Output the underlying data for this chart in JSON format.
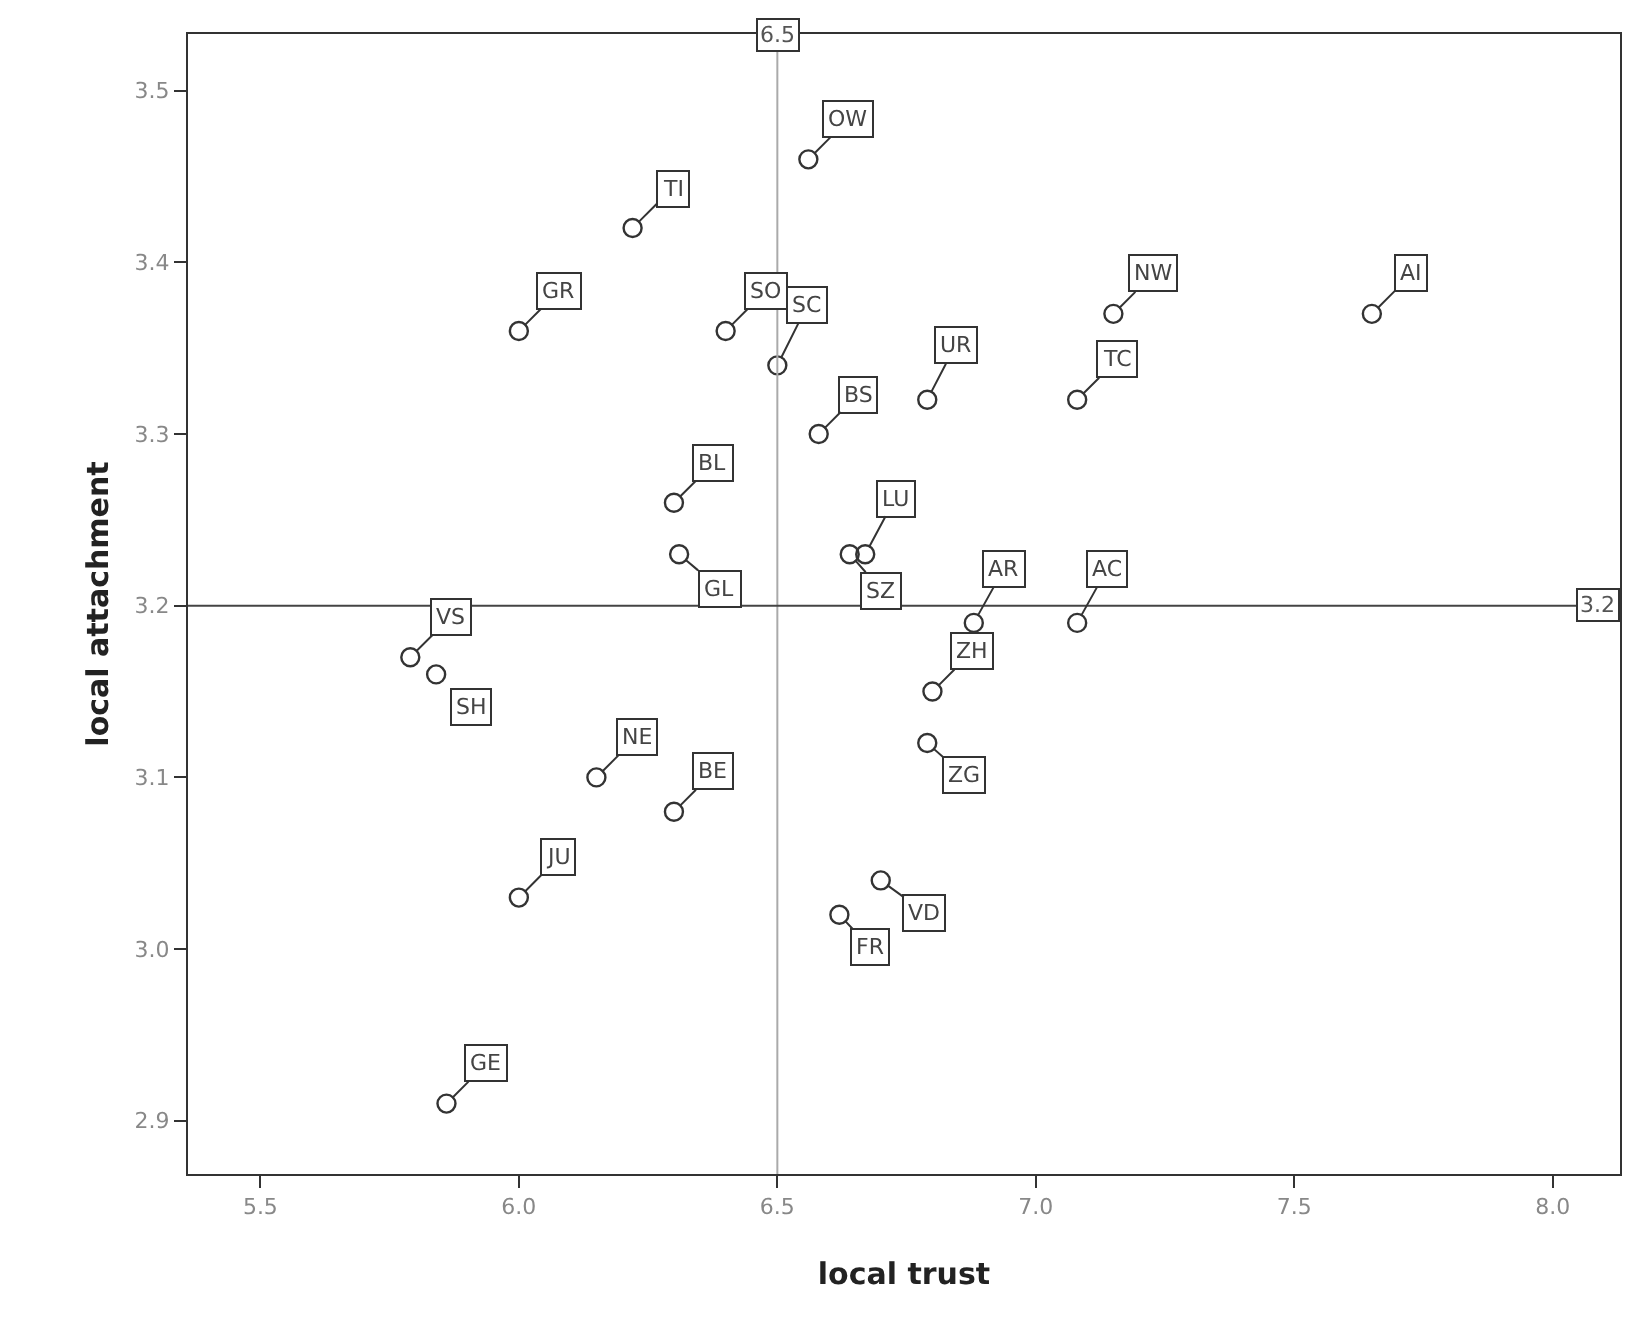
{
  "chart_data": {
    "type": "scatter",
    "xlabel": "local trust",
    "ylabel": "local attachment",
    "x": [
      6.56,
      6.22,
      6.0,
      6.4,
      6.5,
      6.58,
      6.3,
      6.31,
      6.67,
      6.64,
      7.15,
      7.65,
      6.79,
      7.08,
      6.88,
      7.08,
      6.8,
      6.79,
      6.7,
      6.62,
      5.79,
      5.84,
      6.15,
      6.3,
      6.0,
      5.86
    ],
    "values": [
      3.46,
      3.42,
      3.36,
      3.36,
      3.34,
      3.3,
      3.26,
      3.23,
      3.23,
      3.23,
      3.37,
      3.37,
      3.32,
      3.32,
      3.19,
      3.19,
      3.15,
      3.12,
      3.04,
      3.02,
      3.17,
      3.16,
      3.1,
      3.08,
      3.03,
      2.91
    ],
    "color": "#333333",
    "marker": "circle",
    "grid": false,
    "xlim": [
      5.36,
      8.13
    ],
    "xticks": [
      5.5,
      {
        "value": 6,
        "label": "6.0"
      },
      6.5,
      {
        "value": 7,
        "label": "7.0"
      },
      7.5,
      {
        "value": 8,
        "label": "8.0"
      }
    ],
    "ylim": [
      2.869,
      3.533
    ],
    "yticks": [
      2.9,
      {
        "value": 3,
        "label": "3.0"
      },
      3.1,
      3.2,
      3.3,
      3.4,
      3.5
    ],
    "ref_lines": [
      {
        "axis": "x",
        "value": 6.5,
        "label": "6.5",
        "color": "#aaaaaa"
      },
      {
        "axis": "y",
        "value": 3.2,
        "label": "3.2",
        "color": "#444444"
      }
    ],
    "annotations": [
      {
        "text": "OW",
        "x": 6.56,
        "y": 3.46
      },
      {
        "text": "TI",
        "x": 6.22,
        "y": 3.42
      },
      {
        "text": "GR",
        "x": 6.0,
        "y": 3.36
      },
      {
        "text": "SO",
        "x": 6.4,
        "y": 3.36
      },
      {
        "text": "SC",
        "x": 6.5,
        "y": 3.34
      },
      {
        "text": "BS",
        "x": 6.58,
        "y": 3.3
      },
      {
        "text": "BL",
        "x": 6.3,
        "y": 3.26
      },
      {
        "text": "GL",
        "x": 6.31,
        "y": 3.23
      },
      {
        "text": "LU",
        "x": 6.67,
        "y": 3.23
      },
      {
        "text": "SZ",
        "x": 6.64,
        "y": 3.23
      },
      {
        "text": "NW",
        "x": 7.15,
        "y": 3.37
      },
      {
        "text": "AI",
        "x": 7.65,
        "y": 3.37
      },
      {
        "text": "UR",
        "x": 6.79,
        "y": 3.32
      },
      {
        "text": "TC",
        "x": 7.08,
        "y": 3.32
      },
      {
        "text": "AR",
        "x": 6.88,
        "y": 3.19
      },
      {
        "text": "AC",
        "x": 7.08,
        "y": 3.19
      },
      {
        "text": "ZH",
        "x": 6.8,
        "y": 3.15
      },
      {
        "text": "ZG",
        "x": 6.79,
        "y": 3.12
      },
      {
        "text": "VD",
        "x": 6.7,
        "y": 3.04
      },
      {
        "text": "FR",
        "x": 6.62,
        "y": 3.02
      },
      {
        "text": "VS",
        "x": 5.79,
        "y": 3.17
      },
      {
        "text": "SH",
        "x": 5.84,
        "y": 3.16
      },
      {
        "text": "NE",
        "x": 6.15,
        "y": 3.1
      },
      {
        "text": "BE",
        "x": 6.3,
        "y": 3.08
      },
      {
        "text": "JU",
        "x": 6.0,
        "y": 3.03
      },
      {
        "text": "GE",
        "x": 5.86,
        "y": 2.91
      }
    ]
  }
}
